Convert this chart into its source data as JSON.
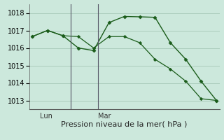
{
  "line1_x": [
    0,
    1,
    2,
    3,
    4,
    5,
    6,
    7,
    8,
    9,
    10,
    11,
    12
  ],
  "line1_y": [
    1016.65,
    1017.0,
    1016.7,
    1016.65,
    1016.0,
    1016.65,
    1016.65,
    1016.3,
    1015.35,
    1014.8,
    1014.1,
    1013.1,
    1013.0
  ],
  "line2_x": [
    0,
    1,
    2,
    3,
    4,
    5,
    6,
    7,
    8,
    9,
    10,
    11,
    12
  ],
  "line2_y": [
    1016.65,
    1017.0,
    1016.7,
    1016.0,
    1015.85,
    1017.45,
    1017.8,
    1017.78,
    1017.75,
    1016.3,
    1015.35,
    1014.1,
    1013.0
  ],
  "line_color_dark": "#1a5c1a",
  "line_color_light": "#2d7a2d",
  "bg_color": "#cce8dc",
  "grid_color": "#aaccbb",
  "xlabel": "Pression niveau de la mer( hPa )",
  "ylim": [
    1012.5,
    1018.5
  ],
  "yticks": [
    1013,
    1014,
    1015,
    1016,
    1017,
    1018
  ],
  "xlim": [
    -0.2,
    12.2
  ],
  "lun_x": 0.5,
  "mar_x": 4.3,
  "sep1_x": 2.5,
  "sep2_x": 4.3,
  "xlabel_fontsize": 8,
  "tick_fontsize": 7
}
